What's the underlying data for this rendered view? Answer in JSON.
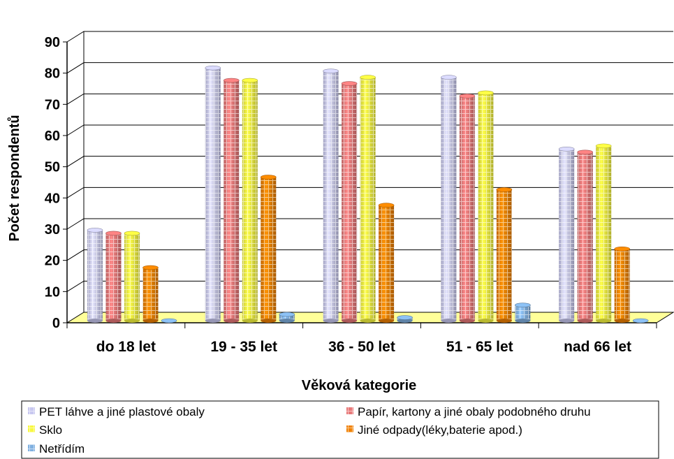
{
  "chart_data": {
    "type": "bar",
    "title": "",
    "xlabel": "Věková kategorie",
    "ylabel": "Počet respondentů",
    "ylim": [
      0,
      90
    ],
    "yticks": [
      0,
      10,
      20,
      30,
      40,
      50,
      60,
      70,
      80,
      90
    ],
    "grid": true,
    "legend_position": "bottom",
    "categories": [
      "do 18 let",
      "19 - 35 let",
      "36 - 50 let",
      "51 - 65 let",
      "nad 66 let"
    ],
    "series": [
      {
        "name": "PET láhve a jiné plastové obaly",
        "values": [
          29,
          81,
          80,
          78,
          55
        ],
        "color": "#c8c8f0"
      },
      {
        "name": "Papír, kartony a jiné obaly podobného druhu",
        "values": [
          28,
          77,
          76,
          72,
          54
        ],
        "color": "#e87878"
      },
      {
        "name": "Sklo",
        "values": [
          28,
          77,
          78,
          73,
          56
        ],
        "color": "#f8f840"
      },
      {
        "name": "Jiné odpady(léky,baterie apod.)",
        "values": [
          17,
          46,
          37,
          42,
          23
        ],
        "color": "#f08000"
      },
      {
        "name": "Netřídím",
        "values": [
          0,
          2,
          1,
          5,
          0
        ],
        "color": "#80b0e0"
      }
    ]
  }
}
